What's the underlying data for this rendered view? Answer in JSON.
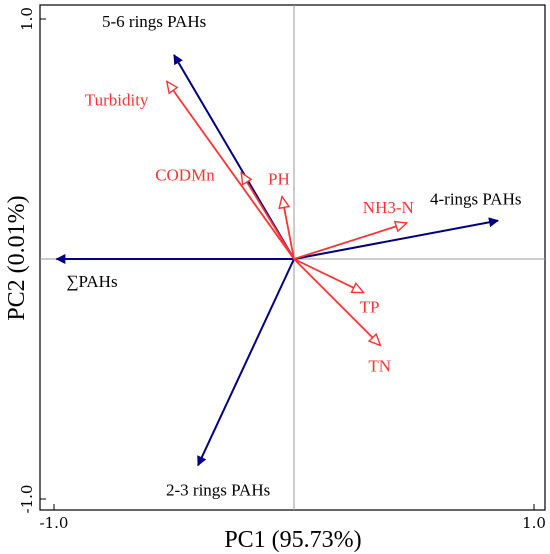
{
  "chart_data": {
    "type": "biplot",
    "xlabel": "PC1 (95.73%)",
    "ylabel": "PC2 (0.01%)",
    "xlim": [
      -1.0,
      1.0
    ],
    "ylim": [
      -1.0,
      1.0
    ],
    "x_ticks": [
      {
        "value": -1.0,
        "label": "-1.0"
      },
      {
        "value": 1.0,
        "label": "1.0"
      }
    ],
    "y_ticks": [
      {
        "value": 1.0,
        "label": "1.0"
      },
      {
        "value": -1.0,
        "label": "-1.0"
      }
    ],
    "zero_lines": true,
    "colors": {
      "response": "#000080",
      "environment": "#ff3333",
      "zero_line": "#999999"
    },
    "response_vectors": [
      {
        "name": "5-6 rings PAHs",
        "x": -0.5,
        "y": 0.85
      },
      {
        "name": "4-rings PAHs",
        "x": 0.85,
        "y": 0.16
      },
      {
        "name": "∑PAHs",
        "x": -0.99,
        "y": 0.0
      },
      {
        "name": "2-3 rings PAHs",
        "x": -0.4,
        "y": -0.86
      }
    ],
    "environment_vectors": [
      {
        "name": "Turbidity",
        "x": -0.53,
        "y": 0.74
      },
      {
        "name": "CODMn",
        "x": -0.22,
        "y": 0.36
      },
      {
        "name": "PH",
        "x": -0.05,
        "y": 0.26
      },
      {
        "name": "NH3-N",
        "x": 0.47,
        "y": 0.15
      },
      {
        "name": "TP",
        "x": 0.29,
        "y": -0.14
      },
      {
        "name": "TN",
        "x": 0.36,
        "y": -0.36
      }
    ]
  }
}
